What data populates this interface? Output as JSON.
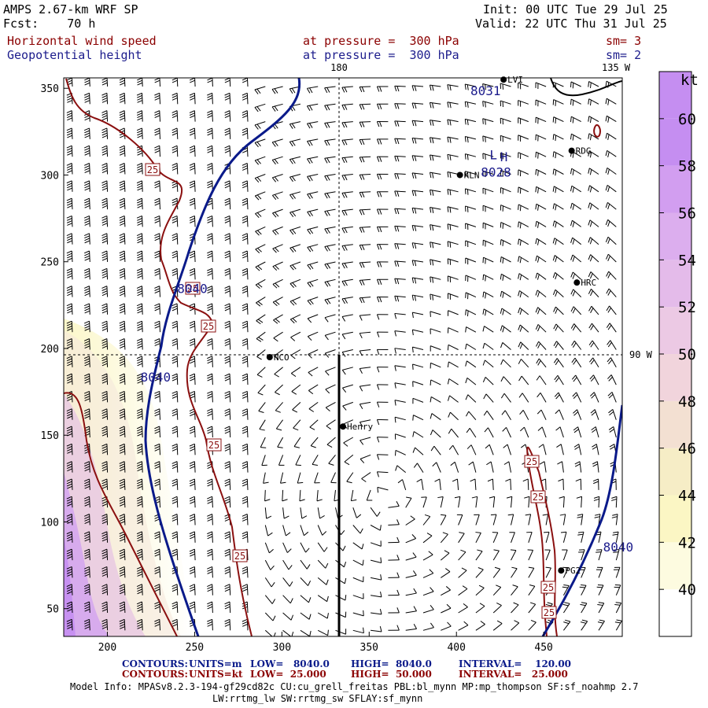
{
  "header": {
    "model": "AMPS 2.67-km WRF SP",
    "fcst": "Fcst:    70 h",
    "init": "Init: 00 UTC Tue 29 Jul 25",
    "valid": "Valid: 22 UTC Thu 31 Jul 25",
    "field1": "Horizontal wind speed",
    "field2": "Geopotential height",
    "level1": "at pressure =  300 hPa",
    "level2": "at pressure =  300 hPa",
    "sm1": "sm= 3",
    "sm2": "sm= 2"
  },
  "footer": {
    "row1": {
      "label": "CONTOURS:",
      "units": "UNITS=m",
      "low": "LOW=   8040.0",
      "high": "HIGH=  8040.0",
      "interval": "INTERVAL=    120.00"
    },
    "row2": {
      "label": "CONTOURS:",
      "units": "UNITS=kt",
      "low": "LOW=  25.000",
      "high": "HIGH=  50.000",
      "interval": "INTERVAL=   25.000"
    },
    "info1": "Model Info: MPASv8.2.3-194-gf29cd82c CU:cu_grell_freitas PBL:bl_mynn MP:mp_thompson SF:sf_noahmp 2.7",
    "info2": "LW:rrtmg_lw SW:rrtmg_sw SFLAY:sf_mynn"
  },
  "chart_data": {
    "type": "heatmap",
    "x_ticks": [
      200,
      250,
      300,
      350,
      400,
      450
    ],
    "y_ticks": [
      50,
      100,
      150,
      200,
      250,
      300,
      350
    ],
    "xlim": [
      175,
      495
    ],
    "ylim": [
      34,
      356
    ],
    "colorbar": {
      "unit": "kt",
      "levels": [
        40,
        42,
        44,
        46,
        48,
        50,
        52,
        54,
        56,
        58,
        60
      ],
      "colors": [
        "#ffffff",
        "#fdfbe0",
        "#fbf6c4",
        "#f6edc6",
        "#f3e0d2",
        "#f1d4dc",
        "#ecc9e4",
        "#e4bbea",
        "#dcaeee",
        "#d29ef0",
        "#c58ef1"
      ]
    },
    "meridian_labels": [
      "180",
      "135 W",
      "90 W"
    ],
    "stations": [
      {
        "name": "LVI",
        "x": 427,
        "y": 355
      },
      {
        "name": "RDG",
        "x": 466,
        "y": 314
      },
      {
        "name": "KLN",
        "x": 402,
        "y": 300
      },
      {
        "name": "HRC",
        "x": 469,
        "y": 238
      },
      {
        "name": "NCO",
        "x": 293,
        "y": 195
      },
      {
        "name": "Henry",
        "x": 335,
        "y": 155
      },
      {
        "name": "PG2",
        "x": 460,
        "y": 72
      }
    ],
    "height_labels": [
      {
        "text": "8031",
        "x": 408,
        "y": 346
      },
      {
        "text": "8028",
        "x": 414,
        "y": 299
      },
      {
        "text": "L",
        "x": 419,
        "y": 309
      },
      {
        "text": "H",
        "x": 425,
        "y": 308
      },
      {
        "text": "8040",
        "x": 240,
        "y": 232
      },
      {
        "text": "8040",
        "x": 219,
        "y": 181
      },
      {
        "text": "8040",
        "x": 484,
        "y": 83
      }
    ],
    "speed_labels": [
      "25",
      "25",
      "25",
      "25",
      "25",
      "25",
      "25",
      "25",
      "25"
    ],
    "series": [
      {
        "name": "Geopotential height",
        "units": "m",
        "level": 8040
      },
      {
        "name": "Horizontal wind speed",
        "units": "kt",
        "level": 25
      }
    ]
  },
  "colors": {
    "height_contour": "#0a1a8a",
    "speed_contour": "#8b1010",
    "text_red": "#8b0000",
    "text_blue": "#1c1c8c"
  }
}
